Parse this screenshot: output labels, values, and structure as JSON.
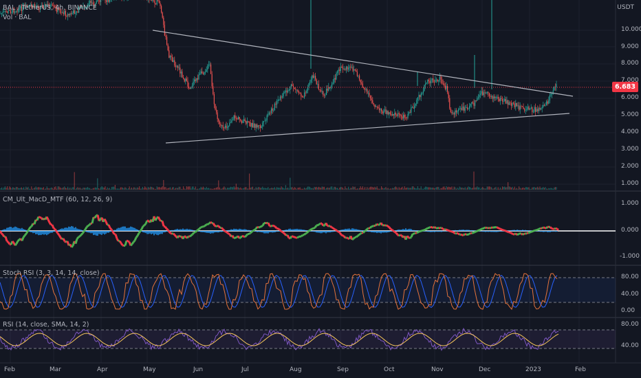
{
  "header": {
    "symbol_line": "BAL / TetherUS, 4h, BINANCE",
    "volume_line": "Vol · BAL"
  },
  "price_axis": {
    "currency": "USDT",
    "ticks": [
      "10.000",
      "9.000",
      "8.000",
      "7.000",
      "6.000",
      "5.000",
      "4.000",
      "3.000",
      "2.000",
      "1.000"
    ],
    "last_price": "6.683"
  },
  "panes": {
    "macd": {
      "title": "CM_Ult_MacD_MTF (60, 12, 26, 9)",
      "ticks": [
        "1.000",
        "0.000",
        "-1.000"
      ]
    },
    "stoch": {
      "title": "Stoch RSI (3, 3, 14, 14, close)",
      "ticks": [
        "80.00",
        "40.00",
        "0.00"
      ]
    },
    "rsi": {
      "title": "RSI (14, close, SMA, 14, 2)",
      "ticks": [
        "80.00",
        "40.00"
      ]
    }
  },
  "time_axis": {
    "labels": [
      "Feb",
      "Mar",
      "Apr",
      "May",
      "Jun",
      "Jul",
      "Aug",
      "Sep",
      "Oct",
      "Nov",
      "Dec",
      "2023",
      "Feb"
    ]
  },
  "colors": {
    "background": "#131722",
    "up": "#26a69a",
    "down": "#ef5350",
    "trendline": "#b2b5be",
    "macd_up": "#4caf50",
    "macd_down": "#f23645",
    "stoch_k": "#e5733c",
    "stoch_d": "#2962ff",
    "rsi_line": "#7e57c2",
    "rsi_ma": "#f7c65c",
    "price_tag": "#f23645"
  }
}
